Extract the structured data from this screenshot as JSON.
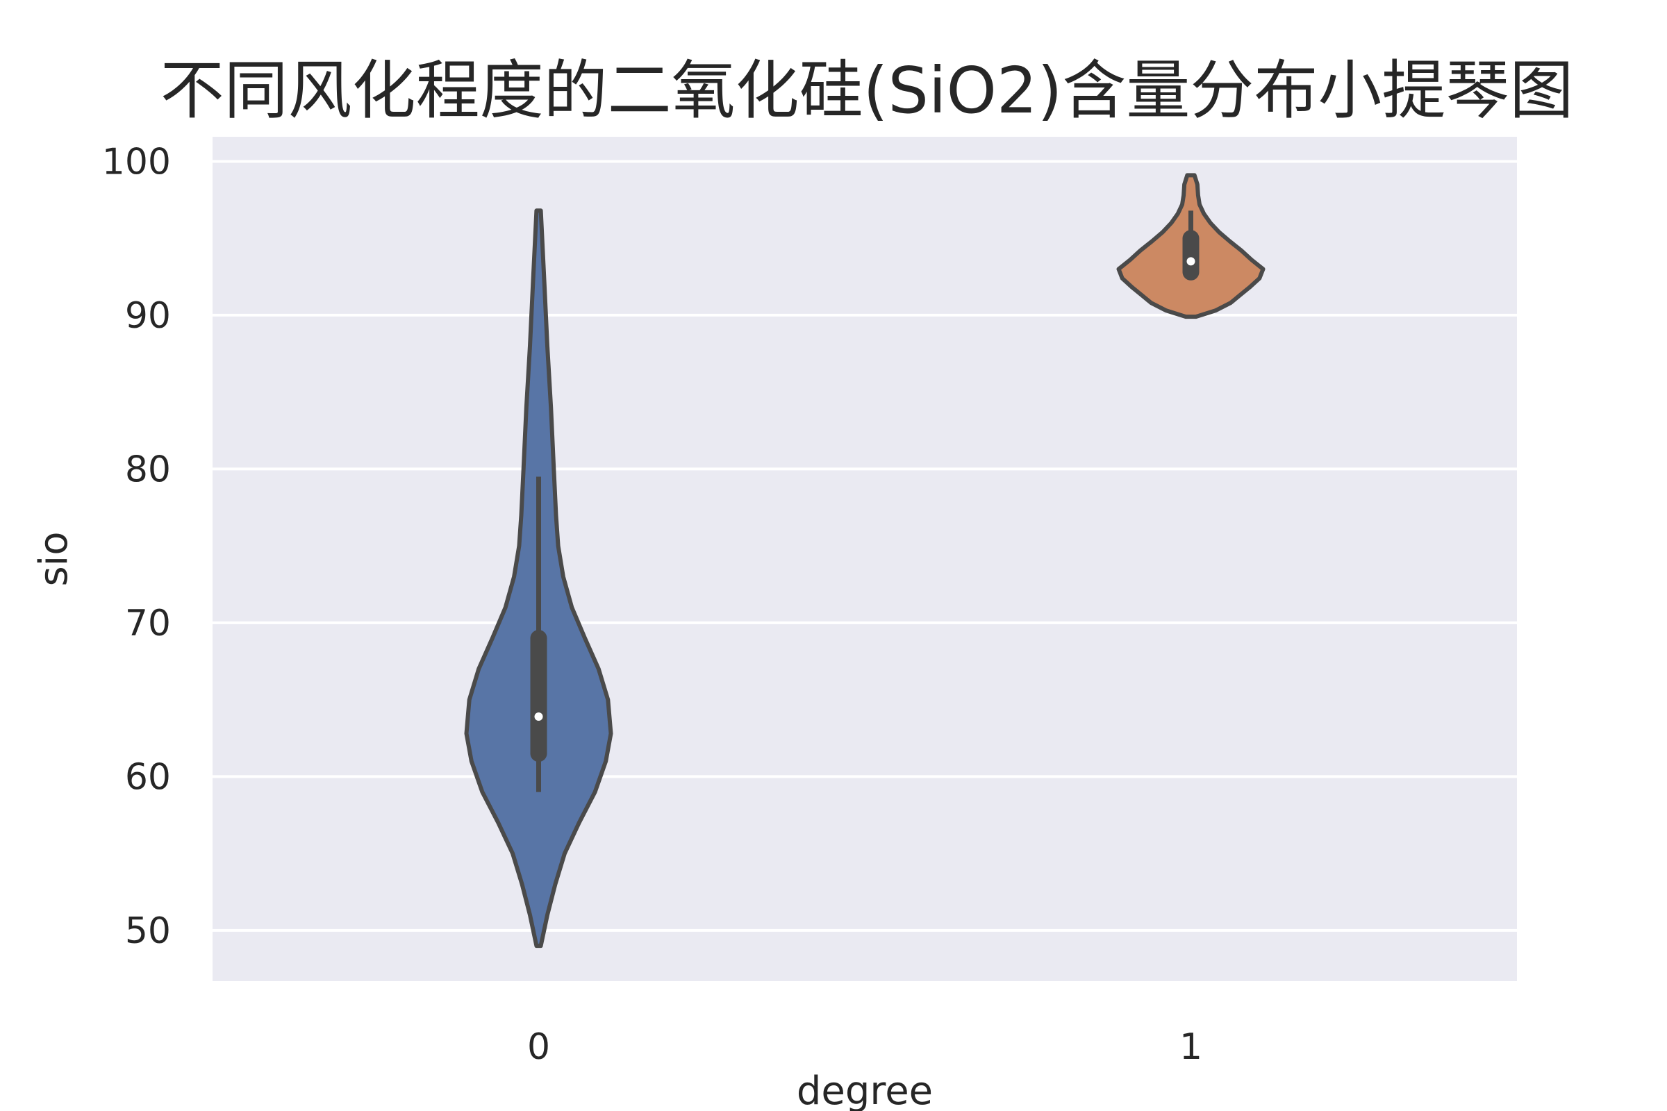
{
  "chart_data": {
    "type": "violin",
    "title": "不同风化程度的二氧化硅(SiO2)含量分布小提琴图",
    "xlabel": "degree",
    "ylabel": "sio",
    "categories": [
      "0",
      "1"
    ],
    "ylim": [
      46.7,
      101.6
    ],
    "yticks": [
      50,
      60,
      70,
      80,
      90,
      100
    ],
    "ytick_labels": [
      "50",
      "60",
      "70",
      "80",
      "90",
      "100"
    ],
    "grid": true,
    "series": [
      {
        "name": "0",
        "color": "#5875a6",
        "min": 59.0,
        "q1": 61.5,
        "median": 63.9,
        "q3": 69.0,
        "max": 79.5,
        "kde_min": 49.0,
        "kde_max": 96.8,
        "density_profile": [
          [
            49.0,
            0.03
          ],
          [
            51.0,
            0.12
          ],
          [
            53.0,
            0.23
          ],
          [
            55.0,
            0.36
          ],
          [
            57.0,
            0.56
          ],
          [
            59.0,
            0.78
          ],
          [
            61.0,
            0.93
          ],
          [
            62.8,
            1.0
          ],
          [
            65.0,
            0.96
          ],
          [
            67.0,
            0.83
          ],
          [
            69.0,
            0.64
          ],
          [
            71.0,
            0.46
          ],
          [
            73.0,
            0.34
          ],
          [
            75.0,
            0.27
          ],
          [
            77.0,
            0.24
          ],
          [
            80.0,
            0.21
          ],
          [
            84.0,
            0.17
          ],
          [
            88.0,
            0.12
          ],
          [
            92.0,
            0.08
          ],
          [
            96.8,
            0.03
          ]
        ]
      },
      {
        "name": "1",
        "color": "#cc8963",
        "min": 92.5,
        "q1": 92.8,
        "median": 93.5,
        "q3": 95.0,
        "max": 96.8,
        "kde_min": 89.9,
        "kde_max": 99.1,
        "density_profile": [
          [
            89.9,
            0.07
          ],
          [
            90.3,
            0.34
          ],
          [
            90.8,
            0.55
          ],
          [
            91.3,
            0.68
          ],
          [
            91.8,
            0.81
          ],
          [
            92.4,
            0.95
          ],
          [
            93.0,
            1.0
          ],
          [
            93.6,
            0.84
          ],
          [
            94.2,
            0.7
          ],
          [
            94.8,
            0.54
          ],
          [
            95.4,
            0.39
          ],
          [
            96.0,
            0.27
          ],
          [
            96.6,
            0.18
          ],
          [
            97.2,
            0.12
          ],
          [
            97.8,
            0.1
          ],
          [
            98.5,
            0.09
          ],
          [
            99.1,
            0.05
          ]
        ]
      }
    ]
  }
}
